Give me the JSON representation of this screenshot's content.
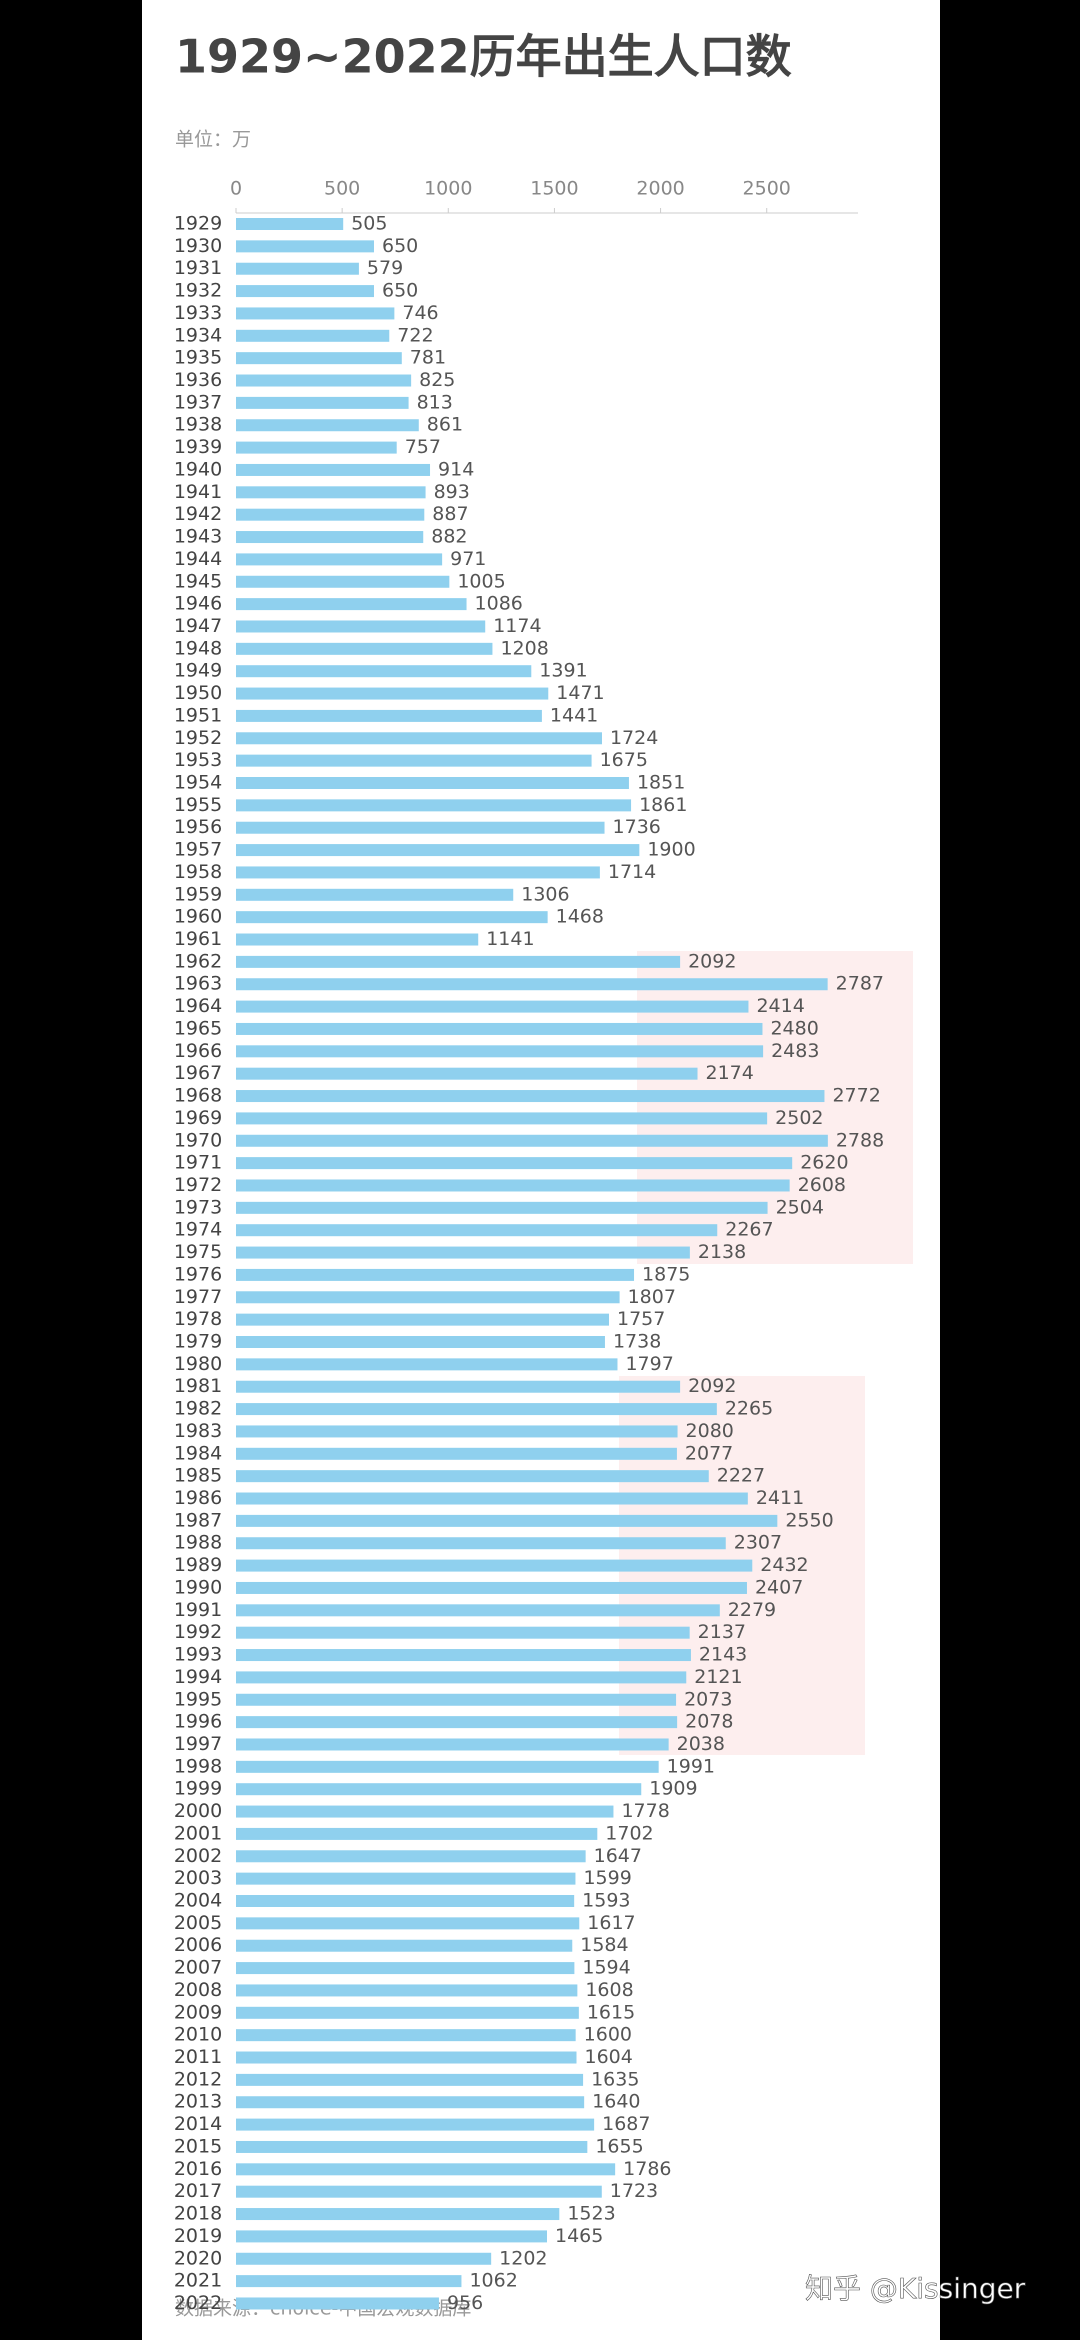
{
  "chart_data": {
    "type": "hbar",
    "title": "1929~2022历年出生人口数",
    "unit": "单位：万",
    "source": "数据来源：choice-中国宏观数据库",
    "watermark": "知乎 @Kissinger",
    "color": "#8fd0ee",
    "xlim": [
      0,
      2930
    ],
    "xticks": [
      0,
      500,
      1000,
      1500,
      2000,
      2500
    ],
    "categories": [
      "1929",
      "1930",
      "1931",
      "1932",
      "1933",
      "1934",
      "1935",
      "1936",
      "1937",
      "1938",
      "1939",
      "1940",
      "1941",
      "1942",
      "1943",
      "1944",
      "1945",
      "1946",
      "1947",
      "1948",
      "1949",
      "1950",
      "1951",
      "1952",
      "1953",
      "1954",
      "1955",
      "1956",
      "1957",
      "1958",
      "1959",
      "1960",
      "1961",
      "1962",
      "1963",
      "1964",
      "1965",
      "1966",
      "1967",
      "1968",
      "1969",
      "1970",
      "1971",
      "1972",
      "1973",
      "1974",
      "1975",
      "1976",
      "1977",
      "1978",
      "1979",
      "1980",
      "1981",
      "1982",
      "1983",
      "1984",
      "1985",
      "1986",
      "1987",
      "1988",
      "1989",
      "1990",
      "1991",
      "1992",
      "1993",
      "1994",
      "1995",
      "1996",
      "1997",
      "1998",
      "1999",
      "2000",
      "2001",
      "2002",
      "2003",
      "2004",
      "2005",
      "2006",
      "2007",
      "2008",
      "2009",
      "2010",
      "2011",
      "2012",
      "2013",
      "2014",
      "2015",
      "2016",
      "2017",
      "2018",
      "2019",
      "2020",
      "2021",
      "2022"
    ],
    "values": [
      505,
      650,
      579,
      650,
      746,
      722,
      781,
      825,
      813,
      861,
      757,
      914,
      893,
      887,
      882,
      971,
      1005,
      1086,
      1174,
      1208,
      1391,
      1471,
      1441,
      1724,
      1675,
      1851,
      1861,
      1736,
      1900,
      1714,
      1306,
      1468,
      1141,
      2092,
      2787,
      2414,
      2480,
      2483,
      2174,
      2772,
      2502,
      2788,
      2620,
      2608,
      2504,
      2267,
      2138,
      1875,
      1807,
      1757,
      1738,
      1797,
      2092,
      2265,
      2080,
      2077,
      2227,
      2411,
      2550,
      2307,
      2432,
      2407,
      2279,
      2137,
      2143,
      2121,
      2073,
      2078,
      2038,
      1991,
      1909,
      1778,
      1702,
      1647,
      1599,
      1593,
      1617,
      1584,
      1594,
      1608,
      1615,
      1600,
      1604,
      1635,
      1640,
      1687,
      1655,
      1786,
      1723,
      1523,
      1465,
      1202,
      1062,
      956
    ]
  }
}
